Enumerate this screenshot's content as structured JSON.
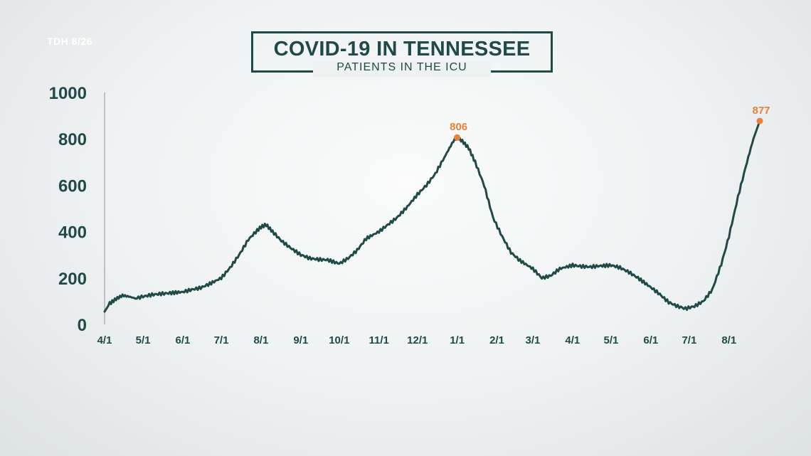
{
  "source_label": "TDH 8/26",
  "chart_data": {
    "type": "line",
    "title": "COVID-19 IN TENNESSEE",
    "subtitle": "PATIENTS IN THE ICU",
    "xlabel": "",
    "ylabel": "",
    "ylim": [
      0,
      1000
    ],
    "y_ticks": [
      "0",
      "200",
      "400",
      "600",
      "800",
      "1000"
    ],
    "x_ticks": [
      "4/1",
      "5/1",
      "6/1",
      "7/1",
      "8/1",
      "9/1",
      "10/1",
      "11/1",
      "12/1",
      "1/1",
      "2/1",
      "3/1",
      "4/1",
      "5/1",
      "6/1",
      "7/1",
      "8/1"
    ],
    "grid": false,
    "legend": "none",
    "line_color": "#1f4a48",
    "highlight_color": "#e8823a",
    "series": [
      {
        "values_by_date": [
          [
            "2020-04-01",
            55
          ],
          [
            "2020-04-05",
            90
          ],
          [
            "2020-04-10",
            110
          ],
          [
            "2020-04-15",
            125
          ],
          [
            "2020-04-20",
            120
          ],
          [
            "2020-04-25",
            112
          ],
          [
            "2020-05-01",
            120
          ],
          [
            "2020-05-08",
            128
          ],
          [
            "2020-05-15",
            132
          ],
          [
            "2020-05-22",
            135
          ],
          [
            "2020-06-01",
            140
          ],
          [
            "2020-06-08",
            150
          ],
          [
            "2020-06-15",
            158
          ],
          [
            "2020-06-22",
            175
          ],
          [
            "2020-07-01",
            200
          ],
          [
            "2020-07-08",
            245
          ],
          [
            "2020-07-15",
            300
          ],
          [
            "2020-07-22",
            365
          ],
          [
            "2020-07-29",
            405
          ],
          [
            "2020-08-01",
            420
          ],
          [
            "2020-08-05",
            430
          ],
          [
            "2020-08-10",
            400
          ],
          [
            "2020-08-17",
            360
          ],
          [
            "2020-08-24",
            330
          ],
          [
            "2020-09-01",
            300
          ],
          [
            "2020-09-08",
            285
          ],
          [
            "2020-09-15",
            280
          ],
          [
            "2020-09-22",
            278
          ],
          [
            "2020-10-01",
            262
          ],
          [
            "2020-10-08",
            285
          ],
          [
            "2020-10-15",
            320
          ],
          [
            "2020-10-22",
            370
          ],
          [
            "2020-11-01",
            400
          ],
          [
            "2020-11-08",
            430
          ],
          [
            "2020-11-15",
            460
          ],
          [
            "2020-11-22",
            500
          ],
          [
            "2020-12-01",
            560
          ],
          [
            "2020-12-08",
            600
          ],
          [
            "2020-12-15",
            650
          ],
          [
            "2020-12-22",
            720
          ],
          [
            "2020-12-26",
            760
          ],
          [
            "2020-12-29",
            790
          ],
          [
            "2021-01-01",
            806
          ],
          [
            "2021-01-05",
            790
          ],
          [
            "2021-01-10",
            760
          ],
          [
            "2021-01-15",
            700
          ],
          [
            "2021-01-22",
            600
          ],
          [
            "2021-01-29",
            460
          ],
          [
            "2021-02-05",
            380
          ],
          [
            "2021-02-12",
            310
          ],
          [
            "2021-02-19",
            275
          ],
          [
            "2021-03-01",
            240
          ],
          [
            "2021-03-08",
            200
          ],
          [
            "2021-03-15",
            210
          ],
          [
            "2021-03-22",
            240
          ],
          [
            "2021-04-01",
            255
          ],
          [
            "2021-04-08",
            250
          ],
          [
            "2021-04-15",
            248
          ],
          [
            "2021-04-22",
            252
          ],
          [
            "2021-05-01",
            255
          ],
          [
            "2021-05-08",
            245
          ],
          [
            "2021-05-15",
            225
          ],
          [
            "2021-05-22",
            200
          ],
          [
            "2021-06-01",
            160
          ],
          [
            "2021-06-08",
            130
          ],
          [
            "2021-06-15",
            95
          ],
          [
            "2021-06-22",
            78
          ],
          [
            "2021-06-28",
            68
          ],
          [
            "2021-07-05",
            78
          ],
          [
            "2021-07-12",
            100
          ],
          [
            "2021-07-19",
            150
          ],
          [
            "2021-07-26",
            260
          ],
          [
            "2021-08-01",
            380
          ],
          [
            "2021-08-08",
            550
          ],
          [
            "2021-08-15",
            700
          ],
          [
            "2021-08-20",
            800
          ],
          [
            "2021-08-25",
            877
          ]
        ]
      }
    ],
    "annotations": [
      {
        "date": "2021-01-01",
        "value": 806,
        "label": "806"
      },
      {
        "date": "2021-08-25",
        "value": 877,
        "label": "877"
      }
    ]
  }
}
